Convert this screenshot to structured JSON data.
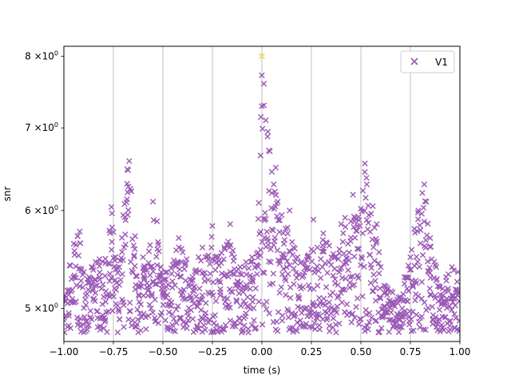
{
  "chart_data": {
    "type": "scatter",
    "xlabel": "time (s)",
    "ylabel": "snr",
    "xlim": [
      -1.0,
      1.0
    ],
    "ylim": [
      4.7,
      8.15
    ],
    "yscale": "log",
    "grid": "x-only",
    "legend_placement": "top-right",
    "x_ticks": [
      {
        "value": -1.0,
        "label": "−1.00"
      },
      {
        "value": -0.75,
        "label": "−0.75"
      },
      {
        "value": -0.5,
        "label": "−0.50"
      },
      {
        "value": -0.25,
        "label": "−0.25"
      },
      {
        "value": 0.0,
        "label": "0.00"
      },
      {
        "value": 0.25,
        "label": "0.25"
      },
      {
        "value": 0.5,
        "label": "0.50"
      },
      {
        "value": 0.75,
        "label": "0.75"
      },
      {
        "value": 1.0,
        "label": "1.00"
      }
    ],
    "y_ticks": [
      {
        "value": 5,
        "mantissa": "5",
        "base": "×10",
        "exp": "0"
      },
      {
        "value": 6,
        "mantissa": "6",
        "base": "×10",
        "exp": "0"
      },
      {
        "value": 7,
        "mantissa": "7",
        "base": "×10",
        "exp": "0"
      },
      {
        "value": 8,
        "mantissa": "8",
        "base": "×10",
        "exp": "0"
      }
    ],
    "series": [
      {
        "name": "V1",
        "color": "#9b59b6",
        "marker": "x",
        "points": [
          [
            -0.97,
            5.42
          ],
          [
            -0.95,
            5.64
          ],
          [
            -0.93,
            5.72
          ],
          [
            -0.92,
            5.77
          ],
          [
            -0.9,
            5.35
          ],
          [
            -0.88,
            5.28
          ],
          [
            -0.86,
            5.4
          ],
          [
            -0.84,
            5.45
          ],
          [
            -0.82,
            5.48
          ],
          [
            -0.79,
            5.44
          ],
          [
            -0.77,
            5.78
          ],
          [
            -0.76,
            6.04
          ],
          [
            -0.74,
            5.5
          ],
          [
            -0.72,
            5.4
          ],
          [
            -0.7,
            5.95
          ],
          [
            -0.68,
            6.48
          ],
          [
            -0.67,
            6.58
          ],
          [
            -0.66,
            6.22
          ],
          [
            -0.64,
            5.72
          ],
          [
            -0.62,
            5.2
          ],
          [
            -0.6,
            5.5
          ],
          [
            -0.57,
            5.56
          ],
          [
            -0.55,
            6.1
          ],
          [
            -0.53,
            5.88
          ],
          [
            -0.51,
            5.4
          ],
          [
            -0.48,
            5.35
          ],
          [
            -0.45,
            5.42
          ],
          [
            -0.42,
            5.7
          ],
          [
            -0.4,
            5.55
          ],
          [
            -0.38,
            5.48
          ],
          [
            -0.35,
            5.3
          ],
          [
            -0.32,
            5.5
          ],
          [
            -0.3,
            5.6
          ],
          [
            -0.27,
            5.52
          ],
          [
            -0.25,
            5.83
          ],
          [
            -0.22,
            5.5
          ],
          [
            -0.19,
            5.6
          ],
          [
            -0.16,
            5.85
          ],
          [
            -0.14,
            5.5
          ],
          [
            -0.11,
            5.4
          ],
          [
            -0.08,
            5.45
          ],
          [
            -0.05,
            5.5
          ],
          [
            -0.02,
            5.55
          ],
          [
            0.0,
            8.0
          ],
          [
            0.0,
            7.72
          ],
          [
            0.01,
            7.6
          ],
          [
            0.01,
            7.3
          ],
          [
            0.02,
            7.1
          ],
          [
            0.03,
            6.95
          ],
          [
            0.04,
            6.7
          ],
          [
            0.05,
            6.45
          ],
          [
            0.06,
            6.3
          ],
          [
            0.07,
            6.5
          ],
          [
            0.08,
            6.1
          ],
          [
            0.1,
            5.95
          ],
          [
            0.12,
            5.8
          ],
          [
            0.14,
            6.0
          ],
          [
            0.16,
            5.6
          ],
          [
            0.18,
            5.5
          ],
          [
            0.2,
            5.45
          ],
          [
            0.23,
            5.5
          ],
          [
            0.26,
            5.9
          ],
          [
            0.28,
            5.6
          ],
          [
            0.31,
            5.75
          ],
          [
            0.34,
            5.62
          ],
          [
            0.37,
            5.5
          ],
          [
            0.4,
            5.85
          ],
          [
            0.42,
            5.92
          ],
          [
            0.45,
            5.88
          ],
          [
            0.46,
            6.18
          ],
          [
            0.47,
            5.92
          ],
          [
            0.5,
            6.02
          ],
          [
            0.52,
            6.55
          ],
          [
            0.53,
            6.3
          ],
          [
            0.54,
            5.95
          ],
          [
            0.56,
            6.05
          ],
          [
            0.58,
            5.85
          ],
          [
            0.6,
            5.4
          ],
          [
            0.63,
            5.2
          ],
          [
            0.66,
            5.15
          ],
          [
            0.69,
            5.1
          ],
          [
            0.72,
            5.3
          ],
          [
            0.75,
            5.5
          ],
          [
            0.77,
            5.8
          ],
          [
            0.79,
            6.0
          ],
          [
            0.81,
            6.2
          ],
          [
            0.82,
            6.3
          ],
          [
            0.83,
            6.1
          ],
          [
            0.85,
            5.7
          ],
          [
            0.88,
            5.4
          ],
          [
            0.9,
            5.2
          ],
          [
            0.93,
            5.3
          ],
          [
            0.96,
            5.4
          ],
          [
            0.99,
            5.35
          ]
        ]
      }
    ],
    "highlight_point": {
      "x": 0.0,
      "y": 8.0,
      "color": "#f0e442"
    }
  }
}
